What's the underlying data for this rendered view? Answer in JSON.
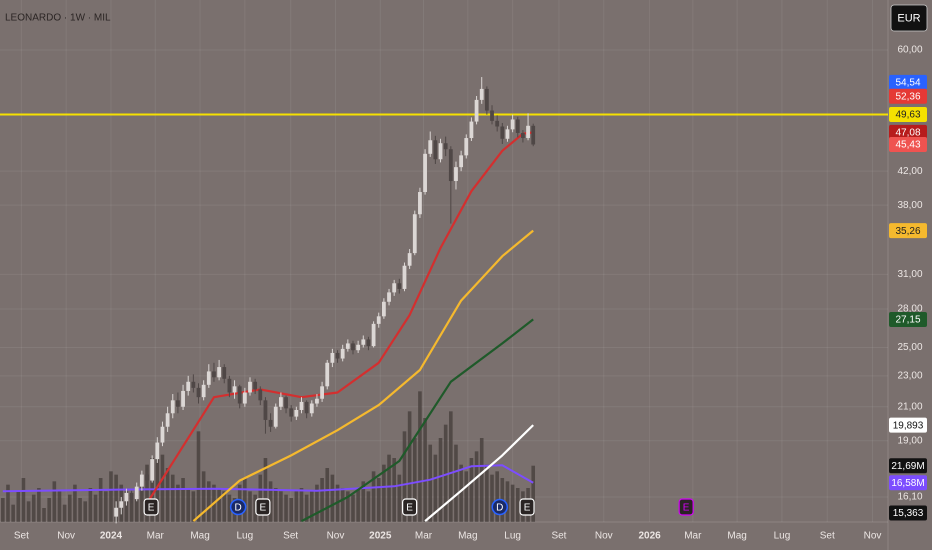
{
  "chart_data": {
    "type": "candlestick",
    "title": "LEONARDO · 1W · MIL",
    "currency": "EUR",
    "log_scale": true,
    "grid": true,
    "xlim": [
      -21.55,
      150.9
    ],
    "xticks": [
      {
        "value": -17.4,
        "label": "Set"
      },
      {
        "value": -8.7,
        "label": "Nov"
      },
      {
        "value": 0,
        "label": "2024"
      },
      {
        "value": 8.6,
        "label": "Mar"
      },
      {
        "value": 17.3,
        "label": "Mag"
      },
      {
        "value": 26,
        "label": "Lug"
      },
      {
        "value": 34.9,
        "label": "Set"
      },
      {
        "value": 43.6,
        "label": "Nov"
      },
      {
        "value": 52.3,
        "label": "2025"
      },
      {
        "value": 60.7,
        "label": "Mar"
      },
      {
        "value": 69.3,
        "label": "Mag"
      },
      {
        "value": 78,
        "label": "Lug"
      },
      {
        "value": 87,
        "label": "Set"
      },
      {
        "value": 95.7,
        "label": "Nov"
      },
      {
        "value": 104.6,
        "label": "2026"
      },
      {
        "value": 113,
        "label": "Mar"
      },
      {
        "value": 121.6,
        "label": "Mag"
      },
      {
        "value": 130.3,
        "label": "Lug"
      },
      {
        "value": 139.1,
        "label": "Set"
      },
      {
        "value": 147.9,
        "label": "Nov"
      }
    ],
    "ylim": [
      14.96,
      69.5
    ],
    "yticks": [
      {
        "value": 60,
        "label": "60,00"
      },
      {
        "value": 42,
        "label": "42,00"
      },
      {
        "value": 38,
        "label": "38,00"
      },
      {
        "value": 31,
        "label": "31,00"
      },
      {
        "value": 28,
        "label": "28,00"
      },
      {
        "value": 25,
        "label": "25,00"
      },
      {
        "value": 23,
        "label": "23,00"
      },
      {
        "value": 21,
        "label": "21,00"
      },
      {
        "value": 19,
        "label": "19,00"
      },
      {
        "value": 16.1,
        "label": "16,10"
      }
    ],
    "up_color": "#dcd7d5",
    "down_color": "#4f4746",
    "candles": [
      [
        1,
        15.2,
        15.9,
        14.9,
        15.6
      ],
      [
        2,
        15.6,
        16.1,
        15.3,
        15.9
      ],
      [
        3,
        15.9,
        16.5,
        15.7,
        16.3
      ],
      [
        4,
        16.3,
        16.4,
        15.8,
        16.0
      ],
      [
        5,
        16.0,
        16.8,
        15.9,
        16.6
      ],
      [
        6,
        16.6,
        17.4,
        16.4,
        17.2
      ],
      [
        7,
        17.2,
        17.5,
        16.7,
        16.9
      ],
      [
        8,
        16.9,
        18.2,
        16.8,
        18.0
      ],
      [
        9,
        18.0,
        19.2,
        17.8,
        18.9
      ],
      [
        10,
        18.9,
        20.1,
        18.7,
        19.8
      ],
      [
        11,
        19.8,
        21.0,
        19.5,
        20.6
      ],
      [
        12,
        20.6,
        21.8,
        20.3,
        21.4
      ],
      [
        13,
        21.4,
        21.9,
        20.6,
        21.0
      ],
      [
        14,
        21.0,
        22.4,
        20.8,
        22.0
      ],
      [
        15,
        22.0,
        23.0,
        21.7,
        22.6
      ],
      [
        16,
        22.6,
        23.1,
        21.9,
        22.2
      ],
      [
        17,
        22.2,
        22.5,
        21.2,
        21.6
      ],
      [
        18,
        21.6,
        22.7,
        21.4,
        22.4
      ],
      [
        19,
        22.4,
        23.8,
        22.2,
        23.3
      ],
      [
        20,
        23.3,
        23.9,
        22.6,
        22.9
      ],
      [
        21,
        22.9,
        24.1,
        22.7,
        23.6
      ],
      [
        22,
        23.6,
        23.8,
        22.5,
        22.8
      ],
      [
        23,
        22.8,
        23.0,
        21.6,
        21.9
      ],
      [
        24,
        21.9,
        22.7,
        21.5,
        22.3
      ],
      [
        25,
        22.3,
        22.4,
        20.9,
        21.2
      ],
      [
        26,
        21.2,
        22.2,
        21.0,
        21.9
      ],
      [
        27,
        21.9,
        22.9,
        21.7,
        22.6
      ],
      [
        28,
        22.6,
        22.8,
        21.8,
        22.1
      ],
      [
        29,
        22.1,
        22.3,
        21.1,
        21.4
      ],
      [
        30,
        21.4,
        21.6,
        19.4,
        20.2
      ],
      [
        31,
        20.2,
        20.6,
        19.5,
        19.8
      ],
      [
        32,
        19.8,
        21.2,
        19.7,
        21.0
      ],
      [
        33,
        21.0,
        21.9,
        20.8,
        21.6
      ],
      [
        34,
        21.6,
        21.7,
        20.6,
        20.9
      ],
      [
        35,
        20.9,
        21.1,
        20.1,
        20.4
      ],
      [
        36,
        20.4,
        21.0,
        20.2,
        20.8
      ],
      [
        37,
        20.8,
        21.6,
        20.6,
        21.3
      ],
      [
        38,
        21.3,
        21.4,
        20.3,
        20.6
      ],
      [
        39,
        20.6,
        21.4,
        20.4,
        21.2
      ],
      [
        40,
        21.2,
        21.8,
        21.0,
        21.5
      ],
      [
        41,
        21.5,
        22.6,
        21.3,
        22.3
      ],
      [
        42,
        22.3,
        24.1,
        22.1,
        23.9
      ],
      [
        43,
        23.9,
        24.9,
        23.6,
        24.6
      ],
      [
        44,
        24.6,
        24.8,
        23.9,
        24.2
      ],
      [
        45,
        24.2,
        25.2,
        24.0,
        24.9
      ],
      [
        46,
        24.9,
        25.6,
        24.7,
        25.3
      ],
      [
        47,
        25.3,
        25.5,
        24.5,
        24.8
      ],
      [
        48,
        24.8,
        25.5,
        24.6,
        25.2
      ],
      [
        49,
        25.2,
        25.9,
        25.0,
        25.6
      ],
      [
        50,
        25.6,
        25.8,
        24.8,
        25.1
      ],
      [
        51,
        25.1,
        27.0,
        25.0,
        26.8
      ],
      [
        52,
        26.8,
        27.7,
        26.5,
        27.4
      ],
      [
        53,
        27.4,
        28.9,
        27.2,
        28.6
      ],
      [
        54,
        28.6,
        29.7,
        28.3,
        29.4
      ],
      [
        55,
        29.4,
        30.5,
        29.1,
        30.2
      ],
      [
        56,
        30.2,
        30.6,
        29.3,
        29.7
      ],
      [
        57,
        29.7,
        32.1,
        29.5,
        31.8
      ],
      [
        58,
        31.8,
        33.4,
        31.5,
        33.0
      ],
      [
        59,
        33.0,
        37.4,
        32.8,
        37.0
      ],
      [
        60,
        37.0,
        40.0,
        36.6,
        39.5
      ],
      [
        61,
        39.5,
        44.8,
        39.2,
        44.2
      ],
      [
        62,
        44.2,
        47.2,
        43.8,
        46.0
      ],
      [
        63,
        46.0,
        46.6,
        42.9,
        43.5
      ],
      [
        64,
        43.5,
        46.2,
        43.1,
        45.6
      ],
      [
        65,
        45.6,
        46.5,
        43.9,
        44.8
      ],
      [
        66,
        44.8,
        45.2,
        36.0,
        40.8
      ],
      [
        67,
        40.8,
        43.2,
        39.8,
        42.5
      ],
      [
        68,
        42.5,
        44.6,
        42.0,
        44.0
      ],
      [
        69,
        44.0,
        46.8,
        43.6,
        46.3
      ],
      [
        70,
        46.3,
        49.2,
        45.9,
        48.6
      ],
      [
        71,
        48.6,
        52.4,
        48.2,
        51.8
      ],
      [
        72,
        51.8,
        55.4,
        51.2,
        53.5
      ],
      [
        73,
        53.5,
        53.9,
        49.6,
        50.2
      ],
      [
        74,
        50.2,
        51.0,
        48.2,
        48.7
      ],
      [
        75,
        48.7,
        49.5,
        47.2,
        47.9
      ],
      [
        76,
        47.9,
        48.4,
        45.5,
        46.2
      ],
      [
        77,
        46.2,
        48.0,
        45.8,
        47.5
      ],
      [
        78,
        47.5,
        49.6,
        47.1,
        48.9
      ],
      [
        79,
        48.9,
        49.3,
        46.4,
        47.0
      ],
      [
        80,
        47.0,
        47.4,
        45.7,
        46.3
      ],
      [
        81,
        46.3,
        49.8,
        46.0,
        48.0
      ],
      [
        82,
        48.0,
        48.3,
        45.2,
        45.43
      ]
    ],
    "series": [
      {
        "color": "#d32f2f",
        "x": [
          7.5,
          20,
          29,
          37,
          44,
          52,
          58,
          64,
          70,
          76,
          80,
          82
        ],
        "values": [
          16,
          21.6,
          22.1,
          21.6,
          21.9,
          23.9,
          27.5,
          33.5,
          39.6,
          44.6,
          46.9,
          47.08
        ]
      },
      {
        "color": "#f5b92e",
        "x": [
          16,
          25,
          35,
          44,
          52,
          60,
          68,
          76,
          82
        ],
        "values": [
          15,
          16.9,
          18.2,
          19.6,
          21.1,
          23.4,
          28.7,
          32.7,
          35.26
        ]
      },
      {
        "color": "#1f5a2a",
        "x": [
          37,
          46,
          56,
          66,
          76,
          82
        ],
        "values": [
          15,
          16.1,
          17.9,
          22.6,
          25.3,
          27.15
        ]
      },
      {
        "color": "#ffffff",
        "x": [
          61,
          68,
          76,
          82
        ],
        "values": [
          15,
          16.4,
          18.2,
          19.893
        ]
      }
    ],
    "volume_lim": [
      4.8,
      161.4
    ],
    "volume_color": "#4a4240",
    "volume": [
      [
        -21,
        12
      ],
      [
        -20,
        16
      ],
      [
        -19,
        10
      ],
      [
        -18,
        14
      ],
      [
        -17,
        18
      ],
      [
        -16,
        11
      ],
      [
        -15,
        13
      ],
      [
        -14,
        15
      ],
      [
        -13,
        9
      ],
      [
        -12,
        12
      ],
      [
        -11,
        17
      ],
      [
        -10,
        14
      ],
      [
        -9,
        10
      ],
      [
        -8,
        13
      ],
      [
        -7,
        16
      ],
      [
        -6,
        12
      ],
      [
        -5,
        11
      ],
      [
        -4,
        15
      ],
      [
        -3,
        13
      ],
      [
        -2,
        18
      ],
      [
        -1,
        14
      ],
      [
        0,
        20
      ],
      [
        1,
        19
      ],
      [
        2,
        16
      ],
      [
        3,
        14
      ],
      [
        4,
        13
      ],
      [
        5,
        15
      ],
      [
        6,
        17
      ],
      [
        7,
        22
      ],
      [
        8,
        24
      ],
      [
        9,
        27
      ],
      [
        10,
        25
      ],
      [
        11,
        21
      ],
      [
        12,
        19
      ],
      [
        13,
        16
      ],
      [
        14,
        18
      ],
      [
        15,
        15
      ],
      [
        16,
        14
      ],
      [
        17,
        32
      ],
      [
        18,
        20
      ],
      [
        19,
        17
      ],
      [
        20,
        16
      ],
      [
        21,
        15
      ],
      [
        22,
        14
      ],
      [
        23,
        13
      ],
      [
        24,
        12
      ],
      [
        25,
        16
      ],
      [
        26,
        18
      ],
      [
        27,
        14
      ],
      [
        28,
        13
      ],
      [
        29,
        19
      ],
      [
        30,
        24
      ],
      [
        31,
        17
      ],
      [
        32,
        15
      ],
      [
        33,
        14
      ],
      [
        34,
        13
      ],
      [
        35,
        12
      ],
      [
        36,
        14
      ],
      [
        37,
        15
      ],
      [
        38,
        13
      ],
      [
        39,
        14
      ],
      [
        40,
        16
      ],
      [
        41,
        18
      ],
      [
        42,
        21
      ],
      [
        43,
        19
      ],
      [
        44,
        16
      ],
      [
        45,
        15
      ],
      [
        46,
        14
      ],
      [
        47,
        13
      ],
      [
        48,
        15
      ],
      [
        49,
        17
      ],
      [
        50,
        14
      ],
      [
        51,
        20
      ],
      [
        52,
        18
      ],
      [
        53,
        22
      ],
      [
        54,
        25
      ],
      [
        55,
        24
      ],
      [
        56,
        19
      ],
      [
        57,
        32
      ],
      [
        58,
        38
      ],
      [
        59,
        30
      ],
      [
        60,
        44
      ],
      [
        61,
        36
      ],
      [
        62,
        28
      ],
      [
        63,
        25
      ],
      [
        64,
        30
      ],
      [
        65,
        34
      ],
      [
        66,
        38
      ],
      [
        67,
        28
      ],
      [
        68,
        22
      ],
      [
        69,
        20
      ],
      [
        70,
        24
      ],
      [
        71,
        26
      ],
      [
        72,
        30
      ],
      [
        73,
        22
      ],
      [
        74,
        19
      ],
      [
        75,
        20
      ],
      [
        76,
        18
      ],
      [
        77,
        17
      ],
      [
        78,
        16
      ],
      [
        79,
        15
      ],
      [
        80,
        14
      ],
      [
        81,
        15
      ],
      [
        82,
        21.69
      ]
    ],
    "volume_ma": {
      "color": "#7c4dff",
      "x": [
        -21,
        0,
        20,
        40,
        55,
        62,
        70,
        76,
        82
      ],
      "values": [
        14,
        14.5,
        14.8,
        14.2,
        15.5,
        17.5,
        21.5,
        21.8,
        16.58
      ]
    },
    "price_labels": [
      {
        "value": 54.54,
        "label": "54,54",
        "color": "#2962ff",
        "text_color": "#ffffff"
      },
      {
        "value": 52.36,
        "label": "52,36",
        "color": "#e53935",
        "text_color": "#ffffff"
      },
      {
        "value": 49.63,
        "label": "49,63",
        "color": "#f5e100",
        "text_color": "#222222",
        "line": true
      },
      {
        "value": 47.08,
        "label": "47,08",
        "color": "#b71c1c",
        "text_color": "#ffffff"
      },
      {
        "value": 45.43,
        "label": "45,43",
        "color": "#ef5350",
        "text_color": "#ffffff"
      },
      {
        "value": 35.26,
        "label": "35,26",
        "color": "#f5b92e",
        "text_color": "#222222"
      },
      {
        "value": 27.15,
        "label": "27,15",
        "color": "#1f5a2a",
        "text_color": "#ffffff"
      },
      {
        "value": 19.893,
        "label": "19,893",
        "color": "#ffffff",
        "text_color": "#111111"
      },
      {
        "value": 15.363,
        "label": "15,363",
        "color": "#111111",
        "text_color": "#ffffff"
      }
    ],
    "volume_labels": [
      {
        "value": 21.69,
        "label": "21,69M",
        "color": "#111111",
        "text_color": "#ffffff"
      },
      {
        "value": 16.58,
        "label": "16,58M",
        "color": "#7c4dff",
        "text_color": "#ffffff"
      }
    ],
    "events": [
      {
        "label": "E",
        "week": 7.8,
        "color": "#ffffff"
      },
      {
        "label": "D",
        "week": 24.7,
        "color": "#2962ff"
      },
      {
        "label": "E",
        "week": 29.5,
        "color": "#ffffff"
      },
      {
        "label": "E",
        "week": 58,
        "color": "#ffffff"
      },
      {
        "label": "D",
        "week": 75.5,
        "color": "#2962ff"
      },
      {
        "label": "E",
        "week": 80.8,
        "color": "#ffffff"
      },
      {
        "label": "E",
        "week": 111.7,
        "color": "#d500f9"
      }
    ]
  }
}
